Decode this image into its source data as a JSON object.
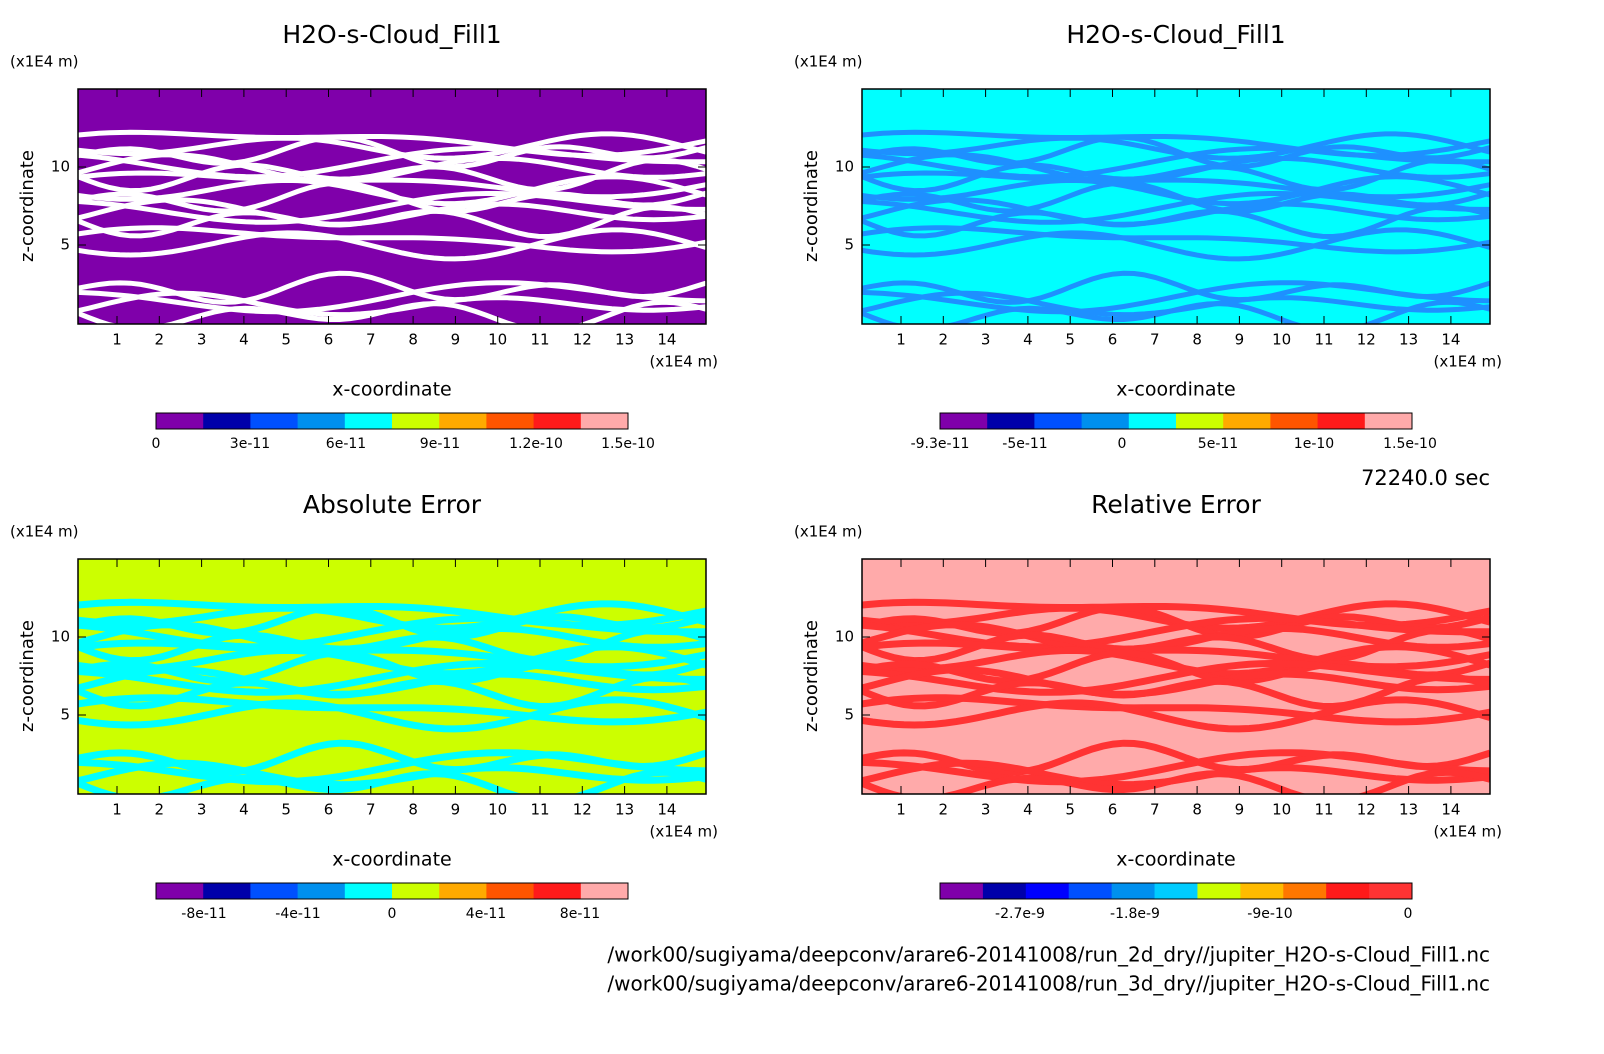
{
  "panels": [
    {
      "title": "H2O-s-Cloud_Fill1",
      "y_unit": "(x1E4 m)",
      "y_label": "z-coordinate",
      "x_unit": "(x1E4 m)",
      "x_label": "x-coordinate",
      "x_ticks": [
        "1",
        "2",
        "3",
        "4",
        "5",
        "6",
        "7",
        "8",
        "9",
        "10",
        "11",
        "12",
        "13",
        "14"
      ],
      "y_ticks": [
        "5",
        "10"
      ],
      "colorbar_labels": [
        "0",
        "3e-11",
        "6e-11",
        "9e-11",
        "1.2e-10",
        "1.5e-10"
      ]
    },
    {
      "title": "H2O-s-Cloud_Fill1",
      "y_unit": "(x1E4 m)",
      "y_label": "z-coordinate",
      "x_unit": "(x1E4 m)",
      "x_label": "x-coordinate",
      "x_ticks": [
        "1",
        "2",
        "3",
        "4",
        "5",
        "6",
        "7",
        "8",
        "9",
        "10",
        "11",
        "12",
        "13",
        "14"
      ],
      "y_ticks": [
        "5",
        "10"
      ],
      "colorbar_labels": [
        "-9.3e-11",
        "-5e-11",
        "0",
        "5e-11",
        "1e-10",
        "1.5e-10"
      ]
    },
    {
      "title": "Absolute Error",
      "y_unit": "(x1E4 m)",
      "y_label": "z-coordinate",
      "x_unit": "(x1E4 m)",
      "x_label": "x-coordinate",
      "x_ticks": [
        "1",
        "2",
        "3",
        "4",
        "5",
        "6",
        "7",
        "8",
        "9",
        "10",
        "11",
        "12",
        "13",
        "14"
      ],
      "y_ticks": [
        "5",
        "10"
      ],
      "colorbar_labels": [
        "-8e-11",
        "-4e-11",
        "0",
        "4e-11",
        "8e-11"
      ]
    },
    {
      "title": "Relative Error",
      "y_unit": "(x1E4 m)",
      "y_label": "z-coordinate",
      "x_unit": "(x1E4 m)",
      "x_label": "x-coordinate",
      "x_ticks": [
        "1",
        "2",
        "3",
        "4",
        "5",
        "6",
        "7",
        "8",
        "9",
        "10",
        "11",
        "12",
        "13",
        "14"
      ],
      "y_ticks": [
        "5",
        "10"
      ],
      "colorbar_labels": [
        "-2.7e-9",
        "-1.8e-9",
        "-9e-10",
        "0"
      ]
    }
  ],
  "time": "72240.0 sec",
  "files": [
    "/work00/sugiyama/deepconv/arare6-20141008/run_2d_dry//jupiter_H2O-s-Cloud_Fill1.nc",
    "/work00/sugiyama/deepconv/arare6-20141008/run_3d_dry//jupiter_H2O-s-Cloud_Fill1.nc"
  ]
}
